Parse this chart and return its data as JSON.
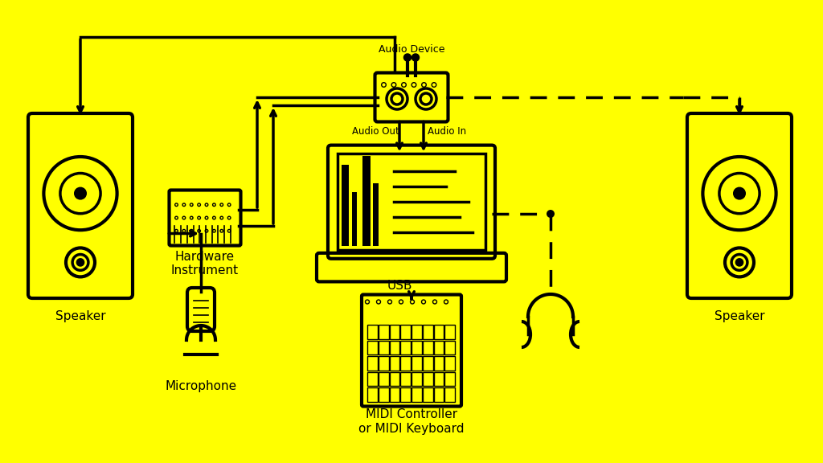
{
  "bg_color": "#FFFF00",
  "line_color": "#000000",
  "line_width": 2.5,
  "title_fontsize": 11,
  "label_fontsize": 11,
  "fig_width": 10.24,
  "fig_height": 5.76,
  "labels": {
    "speaker_left": "Speaker",
    "speaker_right": "Speaker",
    "hardware": "Hardware\nInstrument",
    "microphone": "Microphone",
    "midi": "MIDI Controller\nor MIDI Keyboard",
    "headphones": "",
    "audio_device": "Audio Device",
    "audio_out": "Audio Out",
    "audio_in": "Audio In",
    "usb": "USB"
  }
}
